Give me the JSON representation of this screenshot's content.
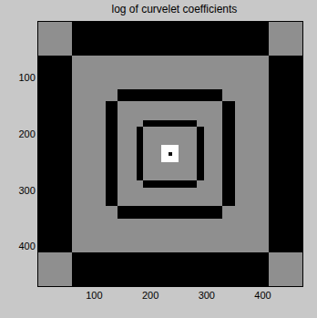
{
  "chart_data": {
    "type": "heatmap",
    "title": "log of curvelet coefficients",
    "x": [
      0.5,
      60,
      120,
      142,
      175,
      187,
      220,
      232,
      238,
      250,
      283,
      295,
      328,
      350,
      410,
      470.5
    ],
    "y": [
      0.5,
      60,
      120,
      142,
      175,
      187,
      220,
      232,
      238,
      250,
      283,
      295,
      328,
      350,
      410,
      470.5
    ],
    "cells": [
      [
        0.5,
        0.05,
        0.05,
        0.05,
        0.05,
        0.05,
        0.05,
        0.05,
        0.05,
        0.05,
        0.05,
        0.05,
        0.05,
        0.05,
        0.5
      ],
      [
        0.05,
        0.5,
        0.5,
        0.5,
        0.5,
        0.5,
        0.5,
        0.5,
        0.5,
        0.5,
        0.5,
        0.5,
        0.5,
        0.5,
        0.05
      ],
      [
        0.05,
        0.5,
        0.5,
        0.05,
        0.05,
        0.05,
        0.05,
        0.05,
        0.05,
        0.05,
        0.05,
        0.05,
        0.5,
        0.5,
        0.05
      ],
      [
        0.05,
        0.5,
        0.05,
        0.5,
        0.5,
        0.5,
        0.5,
        0.5,
        0.5,
        0.5,
        0.5,
        0.5,
        0.05,
        0.5,
        0.05
      ],
      [
        0.05,
        0.5,
        0.05,
        0.5,
        0.5,
        0.05,
        0.05,
        0.05,
        0.05,
        0.05,
        0.5,
        0.5,
        0.05,
        0.5,
        0.05
      ],
      [
        0.05,
        0.5,
        0.05,
        0.5,
        0.05,
        0.5,
        0.5,
        0.5,
        0.5,
        0.5,
        0.05,
        0.5,
        0.05,
        0.5,
        0.05
      ],
      [
        0.05,
        0.5,
        0.05,
        0.5,
        0.05,
        0.5,
        0.85,
        0.85,
        0.85,
        0.5,
        0.05,
        0.5,
        0.05,
        0.5,
        0.05
      ],
      [
        0.05,
        0.5,
        0.05,
        0.5,
        0.05,
        0.5,
        0.85,
        0.1,
        0.85,
        0.5,
        0.05,
        0.5,
        0.05,
        0.5,
        0.05
      ],
      [
        0.05,
        0.5,
        0.05,
        0.5,
        0.05,
        0.5,
        0.85,
        0.85,
        0.85,
        0.5,
        0.05,
        0.5,
        0.05,
        0.5,
        0.05
      ],
      [
        0.05,
        0.5,
        0.05,
        0.5,
        0.05,
        0.5,
        0.5,
        0.5,
        0.5,
        0.5,
        0.05,
        0.5,
        0.05,
        0.5,
        0.05
      ],
      [
        0.05,
        0.5,
        0.05,
        0.5,
        0.5,
        0.05,
        0.05,
        0.05,
        0.05,
        0.05,
        0.5,
        0.5,
        0.05,
        0.5,
        0.05
      ],
      [
        0.05,
        0.5,
        0.05,
        0.5,
        0.5,
        0.5,
        0.5,
        0.5,
        0.5,
        0.5,
        0.5,
        0.5,
        0.05,
        0.5,
        0.05
      ],
      [
        0.05,
        0.5,
        0.5,
        0.05,
        0.05,
        0.05,
        0.05,
        0.05,
        0.05,
        0.05,
        0.05,
        0.05,
        0.5,
        0.5,
        0.05
      ],
      [
        0.05,
        0.5,
        0.5,
        0.5,
        0.5,
        0.5,
        0.5,
        0.5,
        0.5,
        0.5,
        0.5,
        0.5,
        0.5,
        0.5,
        0.05
      ],
      [
        0.5,
        0.05,
        0.05,
        0.05,
        0.05,
        0.05,
        0.05,
        0.05,
        0.05,
        0.05,
        0.05,
        0.05,
        0.05,
        0.05,
        0.5
      ]
    ],
    "xlim": [
      0.5,
      470.5
    ],
    "ylim": [
      470.5,
      0.5
    ],
    "xticks": [
      100,
      200,
      300,
      400
    ],
    "yticks": [
      100,
      200,
      300,
      400
    ]
  }
}
